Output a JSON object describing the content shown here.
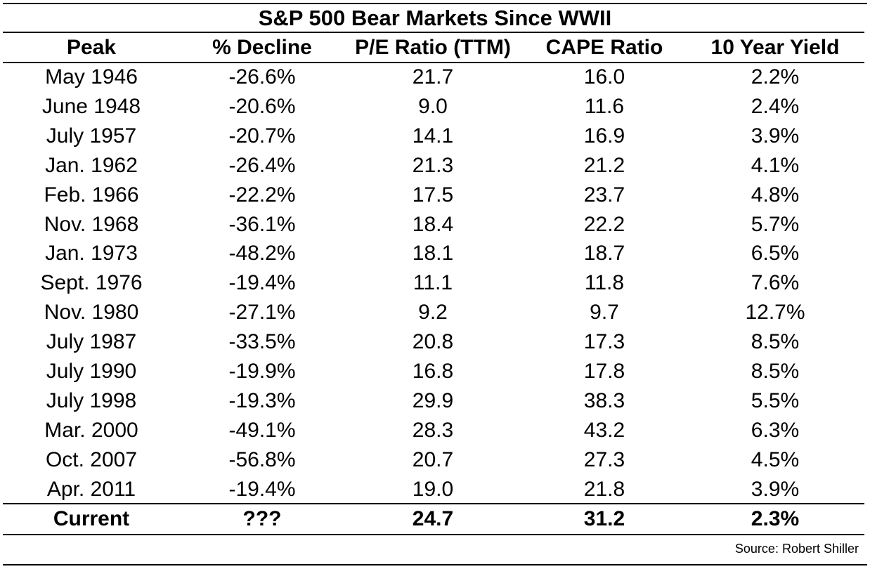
{
  "chart_data": {
    "type": "table",
    "title": "S&P 500 Bear Markets Since WWII",
    "columns": [
      "Peak",
      "% Decline",
      "P/E Ratio (TTM)",
      "CAPE Ratio",
      "10 Year Yield"
    ],
    "rows": [
      [
        "May 1946",
        "-26.6%",
        "21.7",
        "16.0",
        "2.2%"
      ],
      [
        "June 1948",
        "-20.6%",
        "9.0",
        "11.6",
        "2.4%"
      ],
      [
        "July 1957",
        "-20.7%",
        "14.1",
        "16.9",
        "3.9%"
      ],
      [
        "Jan. 1962",
        "-26.4%",
        "21.3",
        "21.2",
        "4.1%"
      ],
      [
        "Feb. 1966",
        "-22.2%",
        "17.5",
        "23.7",
        "4.8%"
      ],
      [
        "Nov. 1968",
        "-36.1%",
        "18.4",
        "22.2",
        "5.7%"
      ],
      [
        "Jan. 1973",
        "-48.2%",
        "18.1",
        "18.7",
        "6.5%"
      ],
      [
        "Sept. 1976",
        "-19.4%",
        "11.1",
        "11.8",
        "7.6%"
      ],
      [
        "Nov. 1980",
        "-27.1%",
        "9.2",
        "9.7",
        "12.7%"
      ],
      [
        "July 1987",
        "-33.5%",
        "20.8",
        "17.3",
        "8.5%"
      ],
      [
        "July 1990",
        "-19.9%",
        "16.8",
        "17.8",
        "8.5%"
      ],
      [
        "July 1998",
        "-19.3%",
        "29.9",
        "38.3",
        "5.5%"
      ],
      [
        "Mar. 2000",
        "-49.1%",
        "28.3",
        "43.2",
        "6.3%"
      ],
      [
        "Oct. 2007",
        "-56.8%",
        "20.7",
        "27.3",
        "4.5%"
      ],
      [
        "Apr. 2011",
        "-19.4%",
        "19.0",
        "21.8",
        "3.9%"
      ]
    ],
    "current_row": [
      "Current",
      "???",
      "24.7",
      "31.2",
      "2.3%"
    ],
    "source": "Source: Robert Shiller"
  }
}
